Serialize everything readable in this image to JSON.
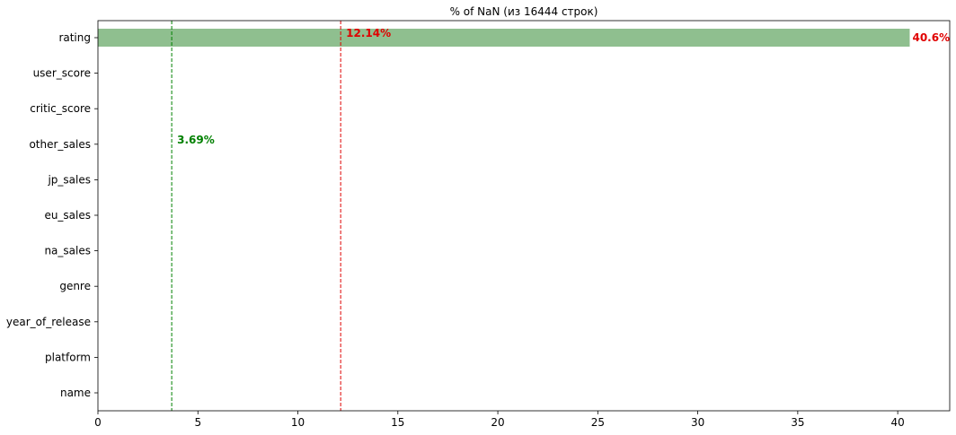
{
  "chart_data": {
    "type": "bar",
    "orientation": "horizontal",
    "title": "% of NaN (из 16444 строк)",
    "xlabel": "",
    "ylabel": "",
    "categories": [
      "name",
      "platform",
      "year_of_release",
      "genre",
      "na_sales",
      "eu_sales",
      "jp_sales",
      "other_sales",
      "critic_score",
      "user_score",
      "rating"
    ],
    "values": [
      0,
      0,
      0,
      0,
      0,
      0,
      0,
      0,
      0,
      0,
      40.6
    ],
    "bar_color": "#8fbf8f",
    "xlim": [
      0,
      42.6
    ],
    "xticks": [
      0,
      5,
      10,
      15,
      20,
      25,
      30,
      35,
      40
    ],
    "grid": false,
    "reference_lines": [
      {
        "x": 3.69,
        "color": "#008000",
        "label": "3.69%",
        "label_category": "other_sales"
      },
      {
        "x": 12.14,
        "color": "#e00000",
        "label": "12.14%",
        "label_category": "rating"
      }
    ],
    "bar_labels": [
      {
        "category": "rating",
        "text": "40.6%",
        "color": "#e00000"
      }
    ]
  }
}
